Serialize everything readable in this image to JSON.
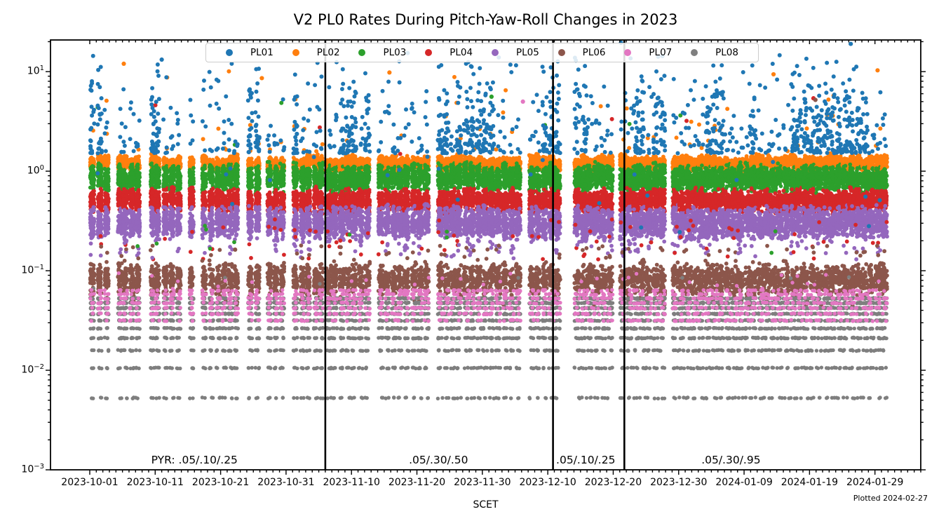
{
  "chart_data": {
    "type": "scatter",
    "title": "V2 PL0 Rates During Pitch-Yaw-Roll Changes in 2023",
    "xlabel": "SCET",
    "footer": "Plotted 2024-02-27",
    "y_scale": "log",
    "ylim": [
      0.001,
      20.8
    ],
    "x_start_date": "2023-10-01",
    "x_left_margin_days": 6,
    "x_days_span": 133,
    "x_data_days": 122,
    "x_tick_step_days": 10,
    "x_tick_labels": [
      "2023-10-01",
      "2023-10-11",
      "2023-10-21",
      "2023-10-31",
      "2023-11-10",
      "2023-11-20",
      "2023-11-30",
      "2023-12-10",
      "2023-12-20",
      "2023-12-30",
      "2024-01-09",
      "2024-01-19",
      "2024-01-29"
    ],
    "y_ticks": [
      {
        "base": "10",
        "exp": "1",
        "value": 10
      },
      {
        "base": "10",
        "exp": "0",
        "value": 1
      },
      {
        "base": "10",
        "exp": "−1",
        "value": 0.1
      },
      {
        "base": "10",
        "exp": "−2",
        "value": 0.01
      },
      {
        "base": "10",
        "exp": "−3",
        "value": 0.001
      }
    ],
    "legend_position": "upper center",
    "grid": false,
    "quantum_rate": 0.00527,
    "vlines": [
      {
        "date": "2023-11-06",
        "day": 36.0
      },
      {
        "date": "2023-12-10",
        "day": 70.8
      },
      {
        "date": "2023-12-21",
        "day": 81.7
      }
    ],
    "annotations": [
      {
        "text": "PYR: .05/.10/.25",
        "day": 16.0
      },
      {
        "text": ".05/.30/.50",
        "day": 53.3
      },
      {
        "text": ".05/.10/.25",
        "day": 75.8
      },
      {
        "text": ".05/.30/.95",
        "day": 98.0
      }
    ],
    "series": [
      {
        "id": "PL01",
        "label": "PL01",
        "color": "#1f77b4",
        "kind": "sparse_high",
        "y_min": 1.5,
        "y_max": 20,
        "per_day": 5,
        "burst_per_day": 22,
        "burst_days": [
          0,
          1,
          8,
          9,
          10,
          16,
          23,
          24,
          25,
          26,
          30,
          31,
          38,
          39,
          40,
          42,
          43,
          52,
          53,
          54,
          56,
          57,
          58,
          59,
          60,
          61,
          69,
          70,
          71,
          73,
          74,
          75,
          83,
          84,
          86,
          87,
          94,
          95,
          96,
          101,
          107,
          108,
          109,
          110,
          111,
          112,
          113,
          114,
          115,
          116,
          117,
          118
        ]
      },
      {
        "id": "PL02",
        "label": "PL02",
        "color": "#ff7f0e",
        "kind": "band",
        "band_lo": 1.0,
        "band_hi": 1.45,
        "per_day": 55,
        "outlier_p": 0.45,
        "outlier_min": 1.6,
        "outlier_max": 12
      },
      {
        "id": "PL03",
        "label": "PL03",
        "color": "#2ca02c",
        "kind": "band",
        "band_lo": 0.61,
        "band_hi": 1.19,
        "per_day": 65,
        "outlier_p": 0.05,
        "outlier_min": 1.4,
        "outlier_max": 6,
        "low_p": 0.08,
        "low_min": 0.15,
        "low_max": 0.3
      },
      {
        "id": "PL04",
        "label": "PL04",
        "color": "#d62728",
        "kind": "band",
        "band_lo": 0.38,
        "band_hi": 0.67,
        "per_day": 55,
        "outlier_p": 0.05,
        "outlier_min": 1.4,
        "outlier_max": 8,
        "low_p": 0.5,
        "low_min": 0.13,
        "low_max": 0.33
      },
      {
        "id": "PL05",
        "label": "PL05",
        "color": "#9467bd",
        "kind": "band",
        "band_lo": 0.2,
        "band_hi": 0.45,
        "per_day": 55,
        "low_p": 0.35,
        "low_min": 0.13,
        "low_max": 0.2
      },
      {
        "id": "PL06",
        "label": "PL06",
        "color": "#8c564b",
        "kind": "band",
        "band_lo": 0.055,
        "band_hi": 0.122,
        "per_day": 38,
        "low_p": 0.5,
        "low_min": 0.12,
        "low_max": 0.18
      },
      {
        "id": "PL07",
        "label": "PL07",
        "color": "#e377c2",
        "kind": "quantized",
        "k_min": 6,
        "k_max": 12,
        "per_day": 14,
        "high_zone_p": 0.3,
        "high_zone_min": 0.065,
        "high_zone_max": 0.095
      },
      {
        "id": "PL08",
        "label": "PL08",
        "color": "#7f7f7f",
        "kind": "rows",
        "row_counts": [
          2,
          3,
          3,
          4,
          4,
          5,
          6,
          6,
          7,
          7
        ]
      }
    ],
    "special_points": [
      {
        "series": "PL01",
        "day": 81.2,
        "value": 19.5
      },
      {
        "series": "PL01",
        "day": 116.3,
        "value": 19.0
      },
      {
        "series": "PL01",
        "day": 11.0,
        "value": 13.2
      },
      {
        "series": "PL02",
        "day": 5.2,
        "value": 12.0
      },
      {
        "series": "PL02",
        "day": 120.4,
        "value": 10.3
      },
      {
        "series": "PL02",
        "day": 104.5,
        "value": 9.4
      },
      {
        "series": "PL02",
        "day": 45.8,
        "value": 9.8
      },
      {
        "series": "PL02",
        "day": 26.3,
        "value": 8.6
      },
      {
        "series": "PL04",
        "day": 110.6,
        "value": 5.4
      },
      {
        "series": "PL06",
        "day": 110.9,
        "value": 5.2
      },
      {
        "series": "PL07",
        "day": 66.2,
        "value": 5.0
      },
      {
        "series": "PL03",
        "day": 61.4,
        "value": 5.6
      }
    ]
  }
}
